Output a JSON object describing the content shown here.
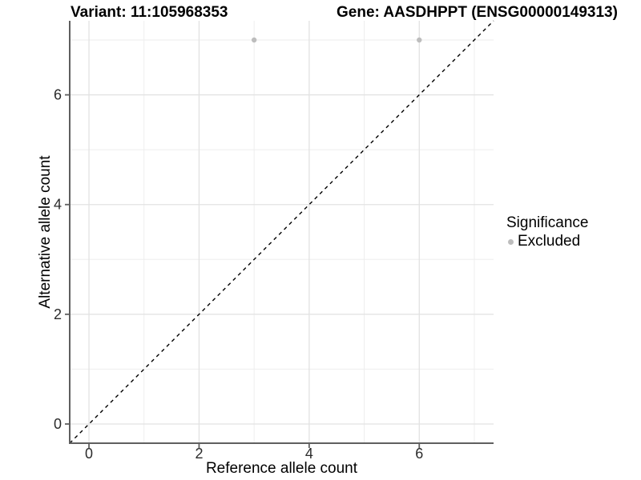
{
  "chart_data": {
    "type": "scatter",
    "title_left": "Variant: 11:105968353",
    "title_right": "Gene: AASDHPPT (ENSG00000149313)",
    "xlabel": "Reference allele count",
    "ylabel": "Alternative allele count",
    "xlim": [
      -0.35,
      7.35
    ],
    "ylim": [
      -0.35,
      7.35
    ],
    "x_major_ticks": [
      0,
      2,
      4,
      6
    ],
    "y_major_ticks": [
      0,
      2,
      4,
      6
    ],
    "x_minor_gridlines": [
      1,
      3,
      5,
      7
    ],
    "y_minor_gridlines": [
      1,
      3,
      5,
      7
    ],
    "grid": "major-and-minor",
    "identity_line": {
      "style": "dashed",
      "color": "#000000",
      "from": [
        -0.35,
        -0.35
      ],
      "to": [
        7.35,
        7.35
      ]
    },
    "series": [
      {
        "name": "Excluded",
        "color": "#bdbdbd",
        "marker": "circle",
        "points": [
          {
            "x": 3,
            "y": 7
          },
          {
            "x": 6,
            "y": 7
          }
        ]
      }
    ],
    "legend": {
      "title": "Significance",
      "position": "right",
      "items": [
        {
          "label": "Excluded",
          "color": "#bdbdbd"
        }
      ]
    }
  },
  "colors": {
    "background": "#ffffff",
    "grid_major": "#e2e2e2",
    "grid_minor": "#eeeeee",
    "axis_line": "#5f5f5f",
    "tick_mark": "#5f5f5f",
    "tick_label": "#2b2b2b",
    "text": "#000000",
    "point": "#bdbdbd"
  }
}
